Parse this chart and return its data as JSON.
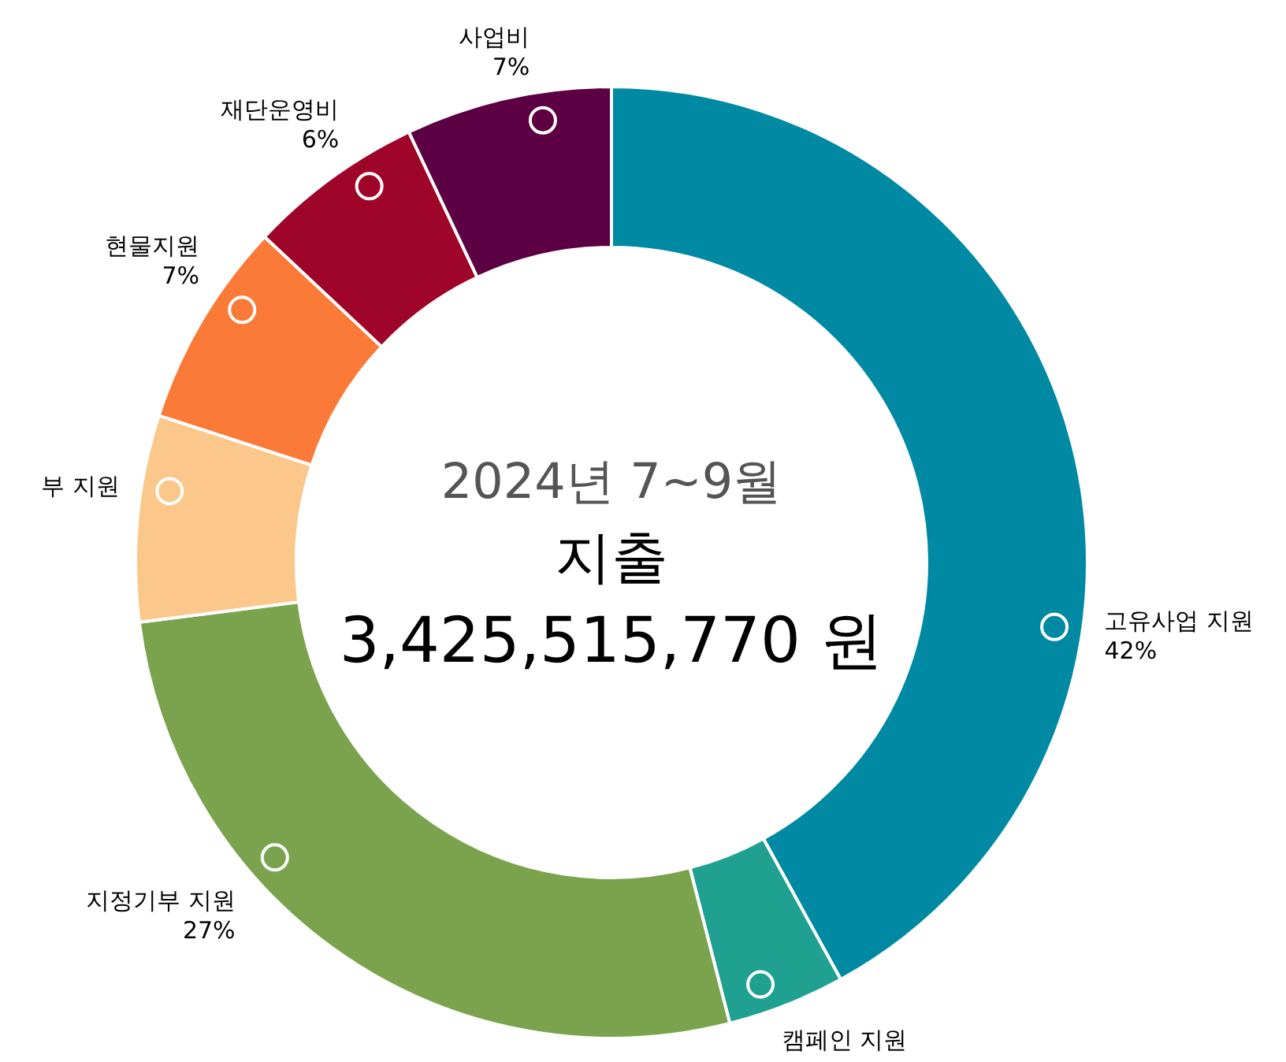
{
  "chart_data": {
    "type": "donut",
    "subtitle": "2024년 7~9월",
    "title": "지출",
    "annotations": [
      "3,425,515,770 원"
    ],
    "categories": [
      "고유사업 지원",
      "캠페인 지원",
      "지정기부 지원",
      "부 지원",
      "현물지원",
      "재단운영비",
      "사업비"
    ],
    "values": [
      42,
      4,
      27,
      7,
      7,
      6,
      7
    ],
    "value_labels": [
      "42%",
      null,
      "27%",
      null,
      "7%",
      "6%",
      "7%"
    ],
    "colors": [
      "#0089a3",
      "#20a091",
      "#7ba34e",
      "#fbc78b",
      "#fb7a38",
      "#9e0528",
      "#5c0043"
    ]
  }
}
